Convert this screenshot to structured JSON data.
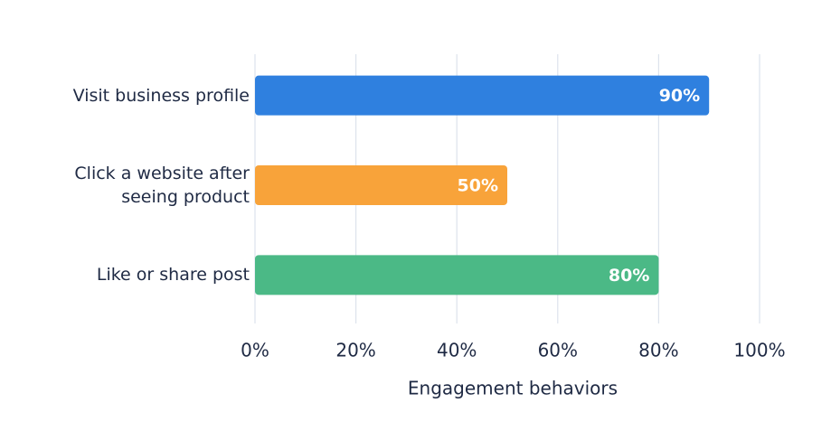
{
  "chart_data": {
    "type": "hbar",
    "categories": [
      "Visit business profile",
      "Click a website after seeing product",
      "Like or share post"
    ],
    "values": [
      90,
      50,
      80
    ],
    "value_labels": [
      "90%",
      "50%",
      "80%"
    ],
    "colors": [
      "#2f80df",
      "#f8a33a",
      "#4bb986"
    ],
    "xlabel": "Engagement behaviors",
    "xlim": [
      0,
      100
    ],
    "xticks": [
      {
        "value": 0,
        "label": "0%"
      },
      {
        "value": 20,
        "label": "20%"
      },
      {
        "value": 40,
        "label": "40%"
      },
      {
        "value": 60,
        "label": "60%"
      },
      {
        "value": 80,
        "label": "80%"
      },
      {
        "value": 100,
        "label": "100%"
      }
    ],
    "grid": true
  }
}
